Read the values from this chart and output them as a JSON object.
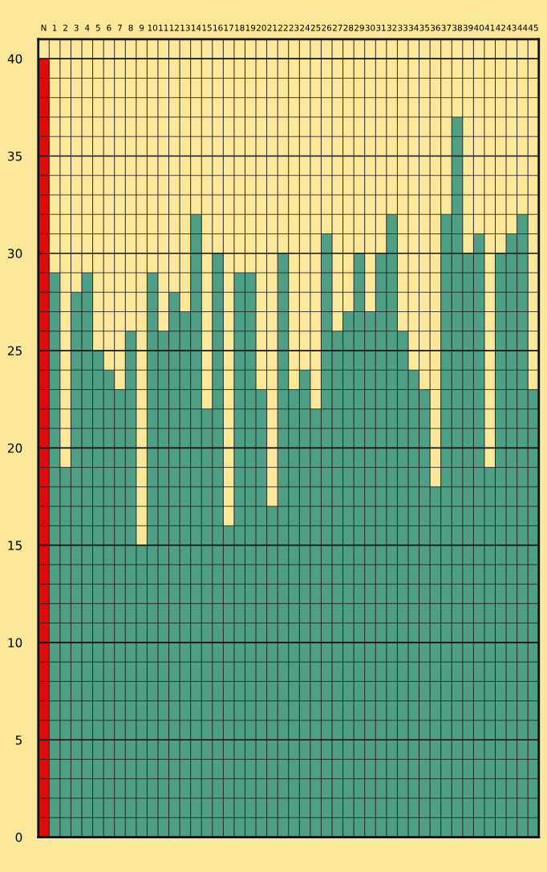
{
  "chart_data": {
    "type": "bar",
    "categories": [
      "N",
      "1",
      "2",
      "3",
      "4",
      "5",
      "6",
      "7",
      "8",
      "9",
      "10",
      "11",
      "12",
      "13",
      "14",
      "15",
      "16",
      "17",
      "18",
      "19",
      "20",
      "21",
      "22",
      "23",
      "24",
      "25",
      "26",
      "27",
      "28",
      "29",
      "30",
      "31",
      "32",
      "33",
      "34",
      "35",
      "36",
      "37",
      "38",
      "39",
      "40",
      "41",
      "42",
      "43",
      "44",
      "45"
    ],
    "values": [
      40,
      29,
      19,
      28,
      29,
      25,
      24,
      23,
      26,
      15,
      29,
      26,
      28,
      27,
      32,
      22,
      30,
      16,
      29,
      29,
      23,
      17,
      30,
      23,
      24,
      22,
      31,
      26,
      27,
      30,
      27,
      30,
      32,
      26,
      24,
      23,
      18,
      32,
      37,
      30,
      31,
      19,
      30,
      31,
      32,
      23
    ],
    "colors": [
      "#e00a0a",
      "#4e9f86",
      "#4e9f86",
      "#4e9f86",
      "#4e9f86",
      "#4e9f86",
      "#4e9f86",
      "#4e9f86",
      "#4e9f86",
      "#4e9f86",
      "#4e9f86",
      "#4e9f86",
      "#4e9f86",
      "#4e9f86",
      "#4e9f86",
      "#4e9f86",
      "#4e9f86",
      "#4e9f86",
      "#4e9f86",
      "#4e9f86",
      "#4e9f86",
      "#4e9f86",
      "#4e9f86",
      "#4e9f86",
      "#4e9f86",
      "#4e9f86",
      "#4e9f86",
      "#4e9f86",
      "#4e9f86",
      "#4e9f86",
      "#4e9f86",
      "#4e9f86",
      "#4e9f86",
      "#4e9f86",
      "#4e9f86",
      "#4e9f86",
      "#4e9f86",
      "#4e9f86",
      "#4e9f86",
      "#4e9f86",
      "#4e9f86",
      "#4e9f86",
      "#4e9f86",
      "#4e9f86",
      "#4e9f86",
      "#4e9f86"
    ],
    "ylim": [
      0,
      41
    ],
    "yticks": [
      0,
      5,
      10,
      15,
      20,
      25,
      30,
      35,
      40
    ],
    "grid": true
  }
}
